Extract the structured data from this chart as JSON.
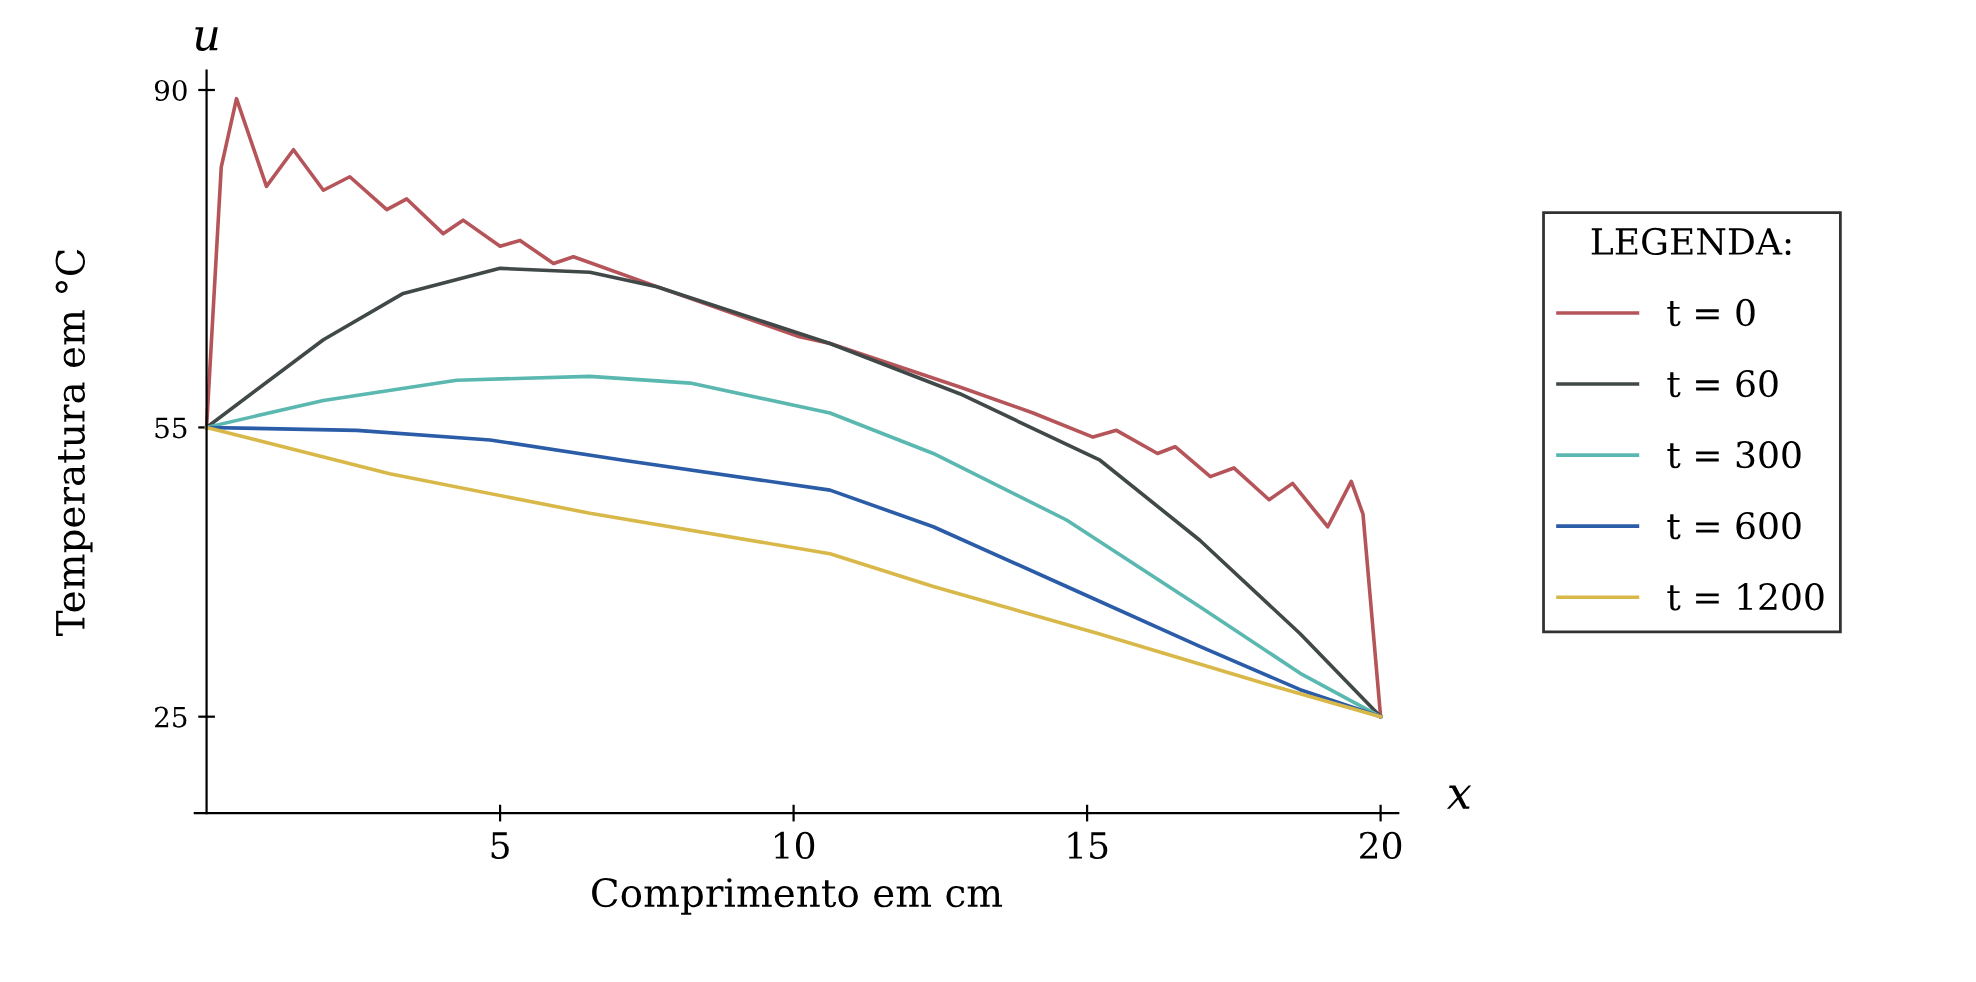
{
  "chart_data": {
    "type": "line",
    "xlabel": "Comprimento em cm",
    "ylabel": "Temperatura em °C",
    "legend_title": "LEGENDA:",
    "annotations": [
      "u",
      "x"
    ],
    "xlim": [
      -0.2,
      20.3
    ],
    "ylim": [
      15,
      92
    ],
    "xticks": [
      5,
      10,
      15,
      20
    ],
    "yticks": [
      25,
      55,
      90
    ],
    "grid": false,
    "legend": "right",
    "marker": "none",
    "line_style": "solid",
    "series": [
      {
        "name": "t = 0",
        "color": "#b5555a",
        "x": [
          0,
          0.25,
          0.51,
          1.02,
          1.48,
          1.99,
          2.44,
          3.07,
          3.41,
          4.03,
          4.37,
          5.0,
          5.34,
          5.91,
          6.25,
          7.67,
          10.1,
          10.62,
          12.83,
          14.08,
          15.1,
          15.5,
          16.2,
          16.5,
          17.1,
          17.5,
          18.1,
          18.5,
          19.1,
          19.5,
          19.7,
          20
        ],
        "values": [
          55,
          82,
          89.1,
          80.0,
          83.8,
          79.6,
          81.0,
          77.6,
          78.7,
          75.1,
          76.5,
          73.8,
          74.4,
          72.0,
          72.7,
          69.6,
          64.4,
          63.7,
          59.2,
          56.5,
          54.0,
          54.7,
          52.3,
          53.0,
          49.9,
          50.8,
          47.5,
          49.2,
          44.7,
          49.4,
          46,
          25
        ]
      },
      {
        "name": "t = 60",
        "color": "#404848",
        "x": [
          0,
          1.99,
          3.35,
          5.0,
          6.53,
          7.67,
          10.62,
          12.83,
          15.22,
          16.92,
          18.63,
          20
        ],
        "values": [
          55,
          64.1,
          68.9,
          71.5,
          71.1,
          69.6,
          63.7,
          58.5,
          51.6,
          43.3,
          33.6,
          25
        ]
      },
      {
        "name": "t = 300",
        "color": "#5ab8b0",
        "x": [
          0,
          1.99,
          4.26,
          6.53,
          8.24,
          10.62,
          12.38,
          14.65,
          16.92,
          18.63,
          20
        ],
        "values": [
          55,
          57.8,
          59.9,
          60.3,
          59.6,
          56.5,
          52.3,
          45.4,
          36.4,
          29.5,
          25
        ]
      },
      {
        "name": "t = 600",
        "color": "#2b5ca8",
        "x": [
          0,
          2.56,
          4.83,
          7.1,
          10.62,
          12.38,
          14.65,
          16.92,
          18.63,
          20
        ],
        "values": [
          55,
          54.7,
          53.7,
          51.6,
          48.5,
          44.7,
          38.5,
          32.3,
          27.8,
          25
        ]
      },
      {
        "name": "t = 1200",
        "color": "#d9b84a",
        "x": [
          0,
          3.12,
          6.53,
          10.62,
          12.38,
          15.2,
          18.05,
          20
        ],
        "values": [
          55,
          50.2,
          46.1,
          41.9,
          38.5,
          33.6,
          28.4,
          25
        ]
      }
    ]
  }
}
